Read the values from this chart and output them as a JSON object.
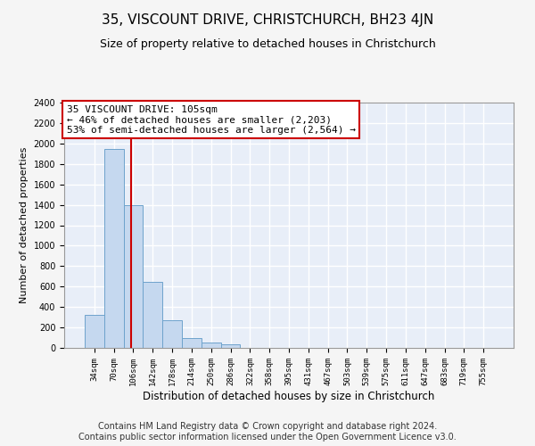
{
  "title": "35, VISCOUNT DRIVE, CHRISTCHURCH, BH23 4JN",
  "subtitle": "Size of property relative to detached houses in Christchurch",
  "xlabel": "Distribution of detached houses by size in Christchurch",
  "ylabel": "Number of detached properties",
  "bar_labels": [
    "34sqm",
    "70sqm",
    "106sqm",
    "142sqm",
    "178sqm",
    "214sqm",
    "250sqm",
    "286sqm",
    "322sqm",
    "358sqm",
    "395sqm",
    "431sqm",
    "467sqm",
    "503sqm",
    "539sqm",
    "575sqm",
    "611sqm",
    "647sqm",
    "683sqm",
    "719sqm",
    "755sqm"
  ],
  "bar_values": [
    320,
    1950,
    1400,
    650,
    270,
    100,
    55,
    35,
    0,
    0,
    0,
    0,
    0,
    0,
    0,
    0,
    0,
    0,
    0,
    0,
    0
  ],
  "bar_color": "#c5d8ef",
  "bar_edgecolor": "#6ea3cc",
  "background_color": "#e8eef8",
  "grid_color": "#ffffff",
  "fig_background": "#f5f5f5",
  "ylim": [
    0,
    2400
  ],
  "yticks": [
    0,
    200,
    400,
    600,
    800,
    1000,
    1200,
    1400,
    1600,
    1800,
    2000,
    2200,
    2400
  ],
  "annotation_box_text": "35 VISCOUNT DRIVE: 105sqm\n← 46% of detached houses are smaller (2,203)\n53% of semi-detached houses are larger (2,564) →",
  "vline_x": 1.87,
  "vline_color": "#cc0000",
  "annotation_box_color": "#ffffff",
  "annotation_box_edgecolor": "#cc0000",
  "footer_line1": "Contains HM Land Registry data © Crown copyright and database right 2024.",
  "footer_line2": "Contains public sector information licensed under the Open Government Licence v3.0.",
  "title_fontsize": 11,
  "subtitle_fontsize": 9,
  "annotation_fontsize": 8,
  "footer_fontsize": 7,
  "ylabel_fontsize": 8,
  "xlabel_fontsize": 8.5
}
